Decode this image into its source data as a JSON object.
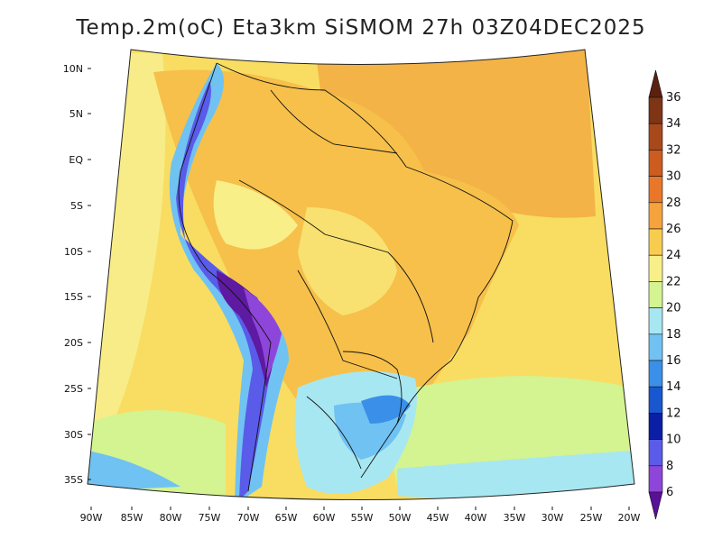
{
  "title": "Temp.2m(oC) Eta3km SiSMOM 27h 03Z04DEC2025",
  "lat_ticks": [
    "10N",
    "5N",
    "EQ",
    "5S",
    "10S",
    "15S",
    "20S",
    "25S",
    "30S",
    "35S"
  ],
  "lon_ticks": [
    "90W",
    "85W",
    "80W",
    "75W",
    "70W",
    "65W",
    "60W",
    "55W",
    "50W",
    "45W",
    "40W",
    "35W",
    "30W",
    "25W",
    "20W"
  ],
  "colorbar": {
    "labels": [
      "36",
      "34",
      "32",
      "30",
      "28",
      "26",
      "24",
      "22",
      "20",
      "18",
      "16",
      "14",
      "12",
      "10",
      "8",
      "6"
    ],
    "colors_top_to_bottom": [
      "#5a2010",
      "#7e3516",
      "#a8491c",
      "#cc5c1f",
      "#e9772a",
      "#f5a33c",
      "#f8cd4f",
      "#f9ef89",
      "#d4f391",
      "#a7e7f1",
      "#70c2f2",
      "#3a8fe8",
      "#1957d1",
      "#0b1ea6",
      "#5a5be8",
      "#8e45d9",
      "#5a1098"
    ]
  },
  "colors": {
    "land_warm": "#f6c04a",
    "ocean_warm": "#f3c54d",
    "andes_cold": "#5e1aa0",
    "south_cold": "#79bdf2"
  }
}
